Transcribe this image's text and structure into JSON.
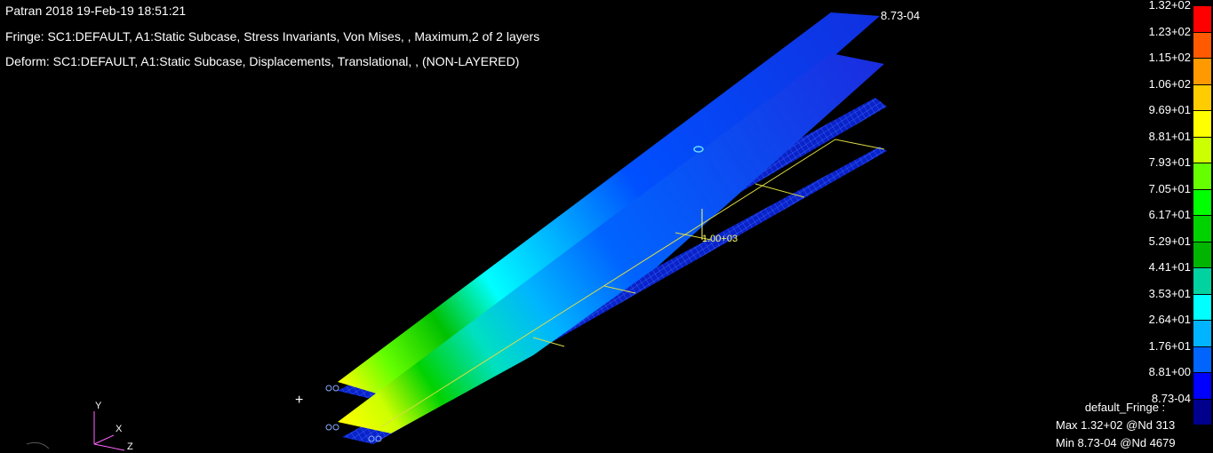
{
  "header": {
    "line1": "Patran 2018 19-Feb-19 18:51:21",
    "line2": "Fringe: SC1:DEFAULT, A1:Static Subcase, Stress Invariants, Von Mises, , Maximum,2 of 2 layers",
    "line3": "Deform: SC1:DEFAULT, A1:Static Subcase, Displacements, Translational, , (NON-LAYERED)"
  },
  "annotations": {
    "top_min": "8.73-04",
    "load_value": "1.00+03",
    "cursor": "+"
  },
  "axes_triad": {
    "y": "Y",
    "x": "X",
    "z": "Z"
  },
  "legend": {
    "labels": [
      "1.32+02",
      "1.23+02",
      "1.15+02",
      "1.06+02",
      "9.69+01",
      "8.81+01",
      "7.93+01",
      "7.05+01",
      "6.17+01",
      "5.29+01",
      "4.41+01",
      "3.53+01",
      "2.64+01",
      "1.76+01",
      "8.81+00",
      "8.73-04"
    ],
    "colors": [
      "#ff0000",
      "#ff5a00",
      "#ff9900",
      "#ffcc00",
      "#ffff00",
      "#ccff00",
      "#66ff00",
      "#00ff00",
      "#00d200",
      "#00b400",
      "#00d2a0",
      "#00ffff",
      "#00b4ff",
      "#0064ff",
      "#0000ff",
      "#00008c"
    ]
  },
  "summary": {
    "title": "default_Fringe :",
    "max": "Max 1.32+02 @Nd 313",
    "min": "Min 8.73-04 @Nd 4679"
  }
}
